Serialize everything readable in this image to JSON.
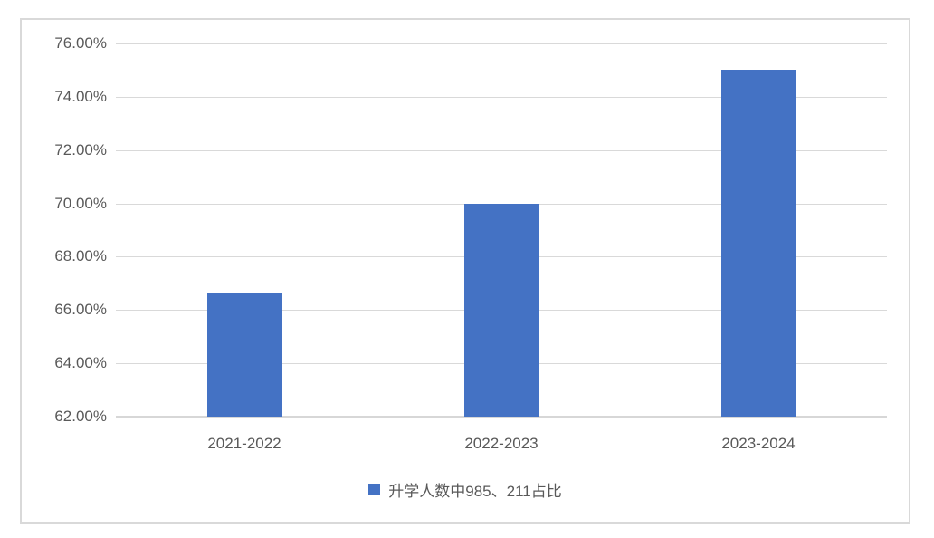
{
  "chart_data": {
    "type": "bar",
    "title": "",
    "categories": [
      "2021-2022",
      "2022-2023",
      "2023-2024"
    ],
    "series": [
      {
        "name": "升学人数中985、211占比",
        "values": [
          66.67,
          70.0,
          75.0
        ]
      }
    ],
    "xlabel": "",
    "ylabel": "",
    "ylim": [
      62,
      76
    ],
    "ytick_step": 2,
    "ytick_labels": [
      "62.00%",
      "64.00%",
      "66.00%",
      "68.00%",
      "70.00%",
      "72.00%",
      "74.00%",
      "76.00%"
    ],
    "grid": true,
    "legend_position": "bottom",
    "colors": {
      "bar": "#4472C4",
      "gridline": "#D9D9D9",
      "axis_line": "#D7D7D7",
      "text": "#595959",
      "frame_border": "#D9D9D9",
      "background": "#FFFFFF"
    }
  },
  "legend": {
    "label": "升学人数中985、211占比",
    "swatch_color": "#4472C4"
  }
}
